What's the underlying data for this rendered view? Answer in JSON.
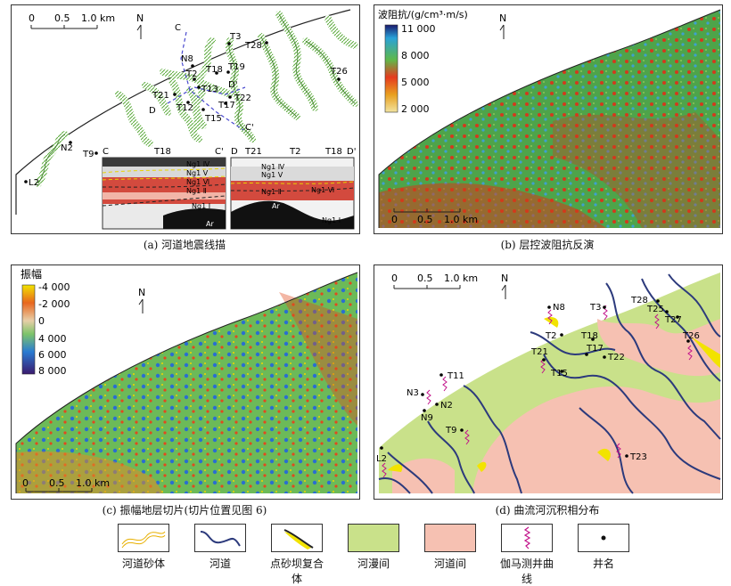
{
  "captions": {
    "a": "(a) 河道地震线描",
    "b": "(b) 层控波阻抗反演",
    "c": "(c) 振幅地层切片(切片位置见图 6)",
    "d": "(d) 曲流河沉积相分布"
  },
  "scale": {
    "zero": "0",
    "half": "0.5",
    "one": "1.0 km"
  },
  "north": "N",
  "panel_a": {
    "wells": [
      "T3",
      "T28",
      "N8",
      "T26",
      "T18",
      "T19",
      "T2",
      "D'",
      "T21",
      "T13",
      "T22",
      "D",
      "T12",
      "T17",
      "T15",
      "C'",
      "N2",
      "T9",
      "L2"
    ],
    "section_labels": [
      "C",
      "T18",
      "C'",
      "D",
      "T21",
      "T2",
      "T18",
      "D'"
    ],
    "section_cc_layers": [
      "Ng1 Ⅳ",
      "Ng1 Ⅴ",
      "Ng1 Ⅵ",
      "Ng1 Ⅱ",
      "Ng1 Ⅰ",
      "Ar"
    ],
    "section_dd_layers": [
      "Ng1 Ⅳ",
      "Ng1 Ⅴ",
      "Ng1 Ⅱ",
      "Ng1 Ⅵ",
      "Ar",
      "Ng1 Ⅰ"
    ],
    "line_c": "C",
    "line_c_end": "C'"
  },
  "panel_b": {
    "colorbar_title": "波阻抗/(g/cm³·m/s)",
    "ticks": [
      "11 000",
      "8 000",
      "5 000",
      "2 000"
    ]
  },
  "panel_c": {
    "colorbar_title": "振幅",
    "ticks": [
      "-4 000",
      "-2 000",
      "0",
      "4 000",
      "6 000",
      "8 000"
    ]
  },
  "panel_d": {
    "wells": [
      "N8",
      "T3",
      "T28",
      "T25",
      "T27",
      "T2",
      "T18",
      "T26",
      "T17",
      "T21",
      "T22",
      "T15",
      "T11",
      "N3",
      "N2",
      "N9",
      "T9",
      "T23",
      "L2"
    ]
  },
  "legend": [
    {
      "label": "河道砂体",
      "icon": "sand-channel"
    },
    {
      "label": "河道",
      "icon": "channel-line"
    },
    {
      "label": "点砂坝复合体",
      "icon": "point-bar"
    },
    {
      "label": "河漫间",
      "icon": "floodplain",
      "color": "#c9e18a"
    },
    {
      "label": "河道间",
      "icon": "interchannel",
      "color": "#f6c1b2"
    },
    {
      "label": "伽马测井曲线",
      "icon": "gamma-log",
      "color": "#c2128a"
    },
    {
      "label": "井名",
      "icon": "well-dot"
    }
  ],
  "colors": {
    "channel": "#2c3a7c",
    "floodplain": "#c9e18a",
    "interchannel": "#f6c1b2",
    "gamma": "#c2128a",
    "bar": "#f2e300"
  }
}
